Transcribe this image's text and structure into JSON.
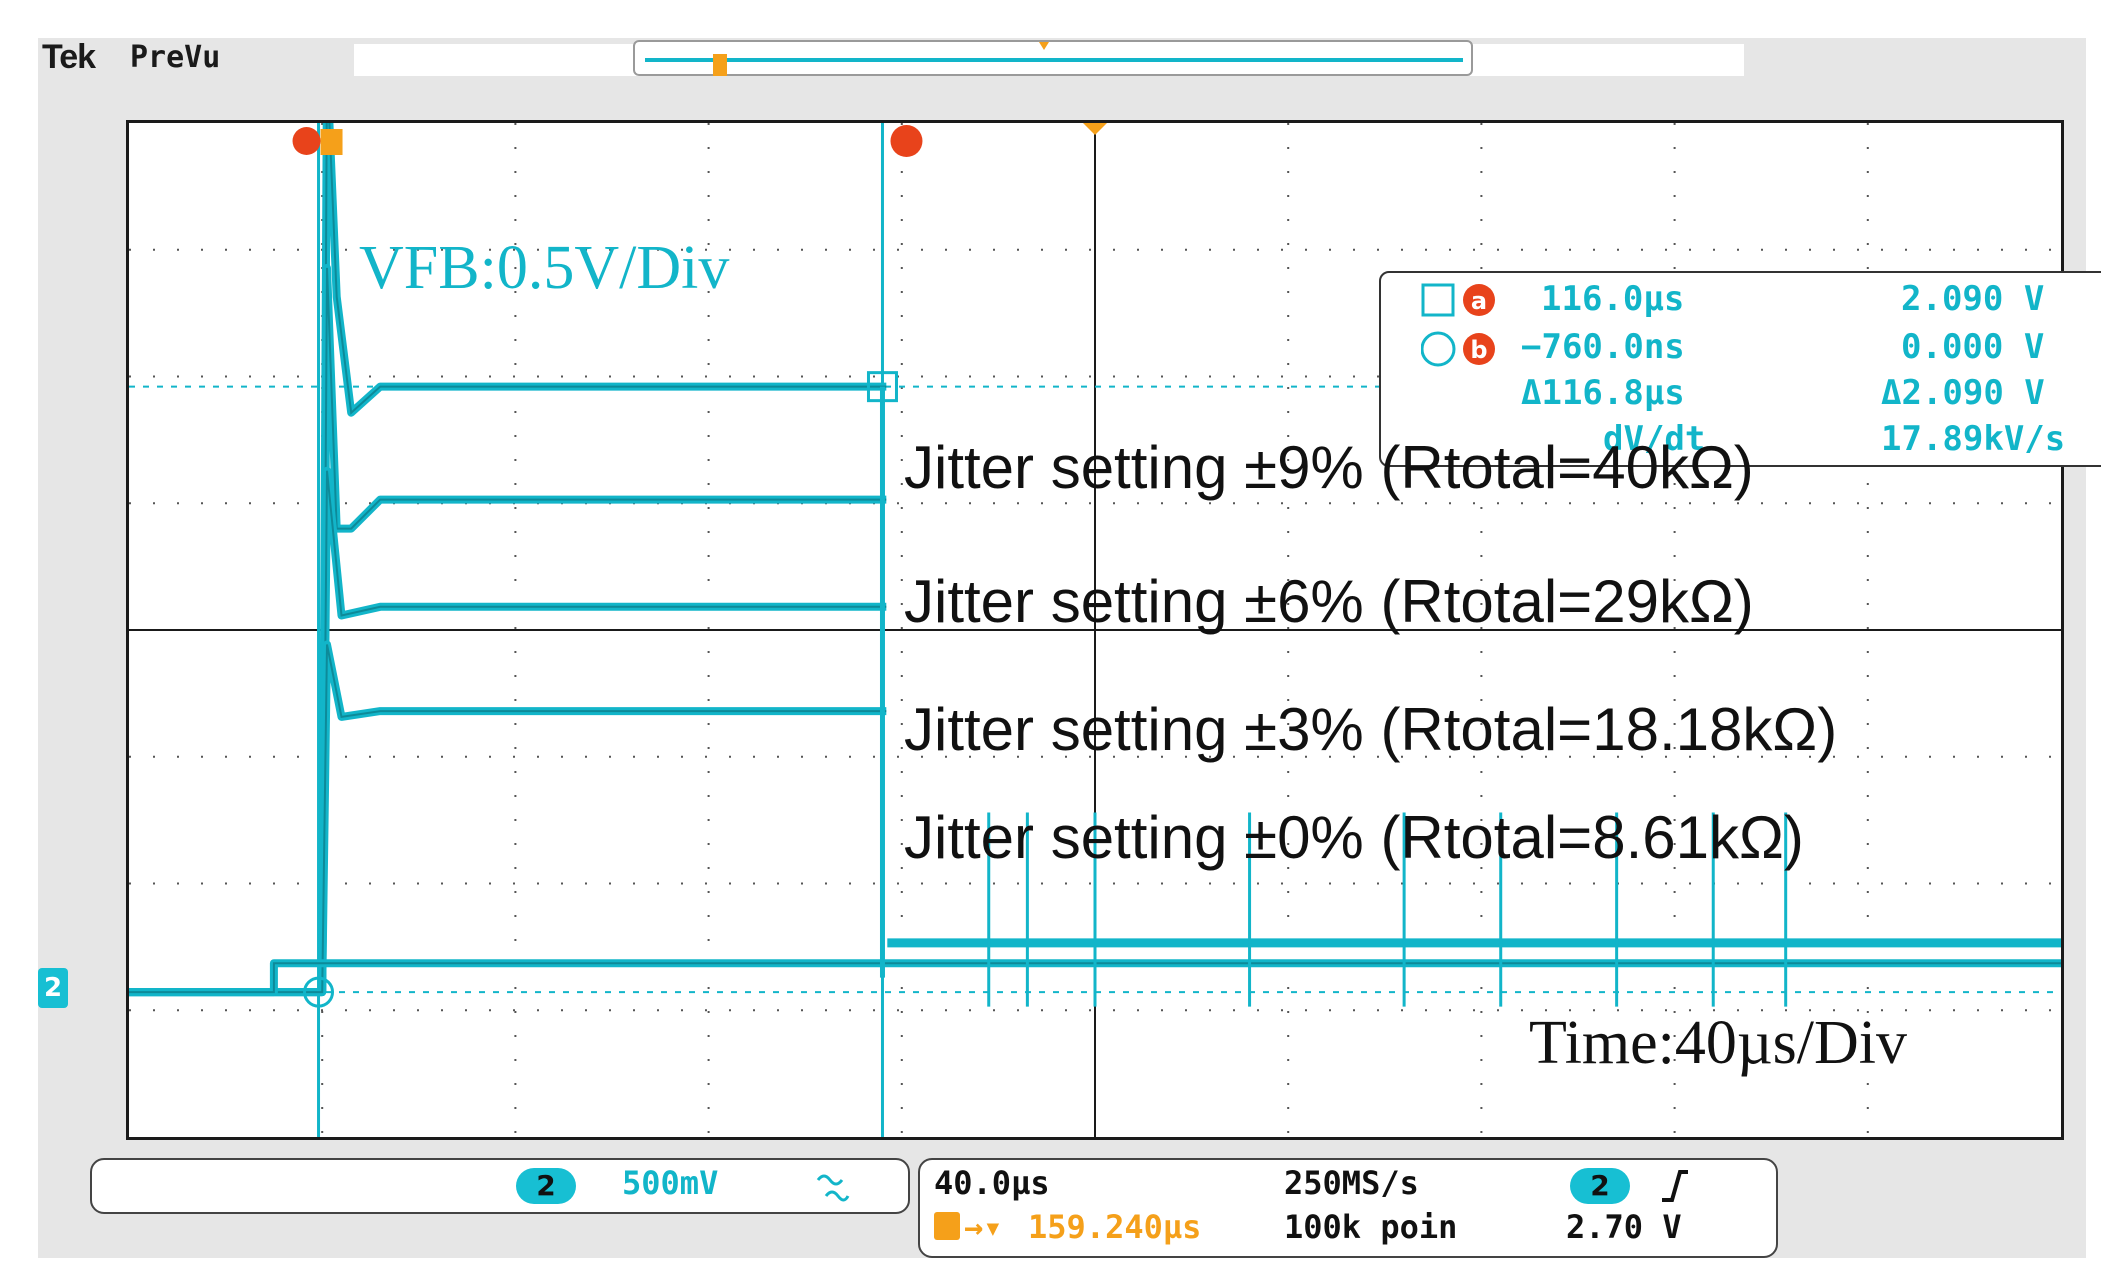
{
  "header": {
    "brand": "Tek",
    "mode": "PreVu"
  },
  "channel_marker": "2",
  "cursors": {
    "a_label": "a",
    "b_label": "b",
    "a_time": "116.0µs",
    "a_value": "2.090 V",
    "b_time": "−760.0ns",
    "b_value": "0.000 V",
    "delta_time": "Δ116.8µs",
    "delta_value": "Δ2.090 V",
    "dvdt_label": "dV/dt",
    "dvdt_value": "17.89kV/s"
  },
  "annotations": {
    "vfb_scale": "VFB:0.5V/Div",
    "time_scale": "Time:40µs/Div",
    "jitter_9": "Jitter setting  ±9% (Rtotal=40kΩ)",
    "jitter_6": "Jitter setting  ±6% (Rtotal=29kΩ)",
    "jitter_3": "Jitter setting  ±3% (Rtotal=18.18kΩ)",
    "jitter_0": "Jitter setting  ±0% (Rtotal=8.61kΩ)"
  },
  "vertical_panel": {
    "channel": "2",
    "scale": "500mV"
  },
  "horizontal_panel": {
    "timebase": "40.0µs",
    "trigger_position": "159.240µs",
    "sample_rate": "250MS/s",
    "record_length": "100k poin",
    "trigger_channel": "2",
    "trigger_level": "2.70 V"
  },
  "colors": {
    "trace": "#12b5c9",
    "cursor_badge": "#e8431b",
    "trigger": "#f5a01a",
    "grid": "#1a1a1a"
  },
  "chart_data": {
    "type": "line",
    "title": "",
    "xlabel": "Time:40µs/Div",
    "ylabel": "VFB:0.5V/Div",
    "x_unit": "µs",
    "y_unit": "V",
    "xlim": [
      -40,
      360
    ],
    "ylim": [
      -0.5,
      3.0
    ],
    "grid": true,
    "series": [
      {
        "name": "Jitter setting  ±9% (Rtotal=40kΩ)",
        "x": [
          -40,
          0,
          1,
          3,
          6,
          12,
          110,
          116.8,
          116.8
        ],
        "y": [
          0,
          0,
          3.2,
          2.4,
          2.0,
          2.09,
          2.09,
          2.09,
          2.09
        ]
      },
      {
        "name": "Jitter setting  ±6% (Rtotal=29kΩ)",
        "x": [
          -40,
          0,
          1,
          3,
          6,
          12,
          116.8
        ],
        "y": [
          0,
          0,
          2.5,
          1.6,
          1.6,
          1.7,
          1.7
        ]
      },
      {
        "name": "Jitter setting  ±3% (Rtotal=18.18kΩ)",
        "x": [
          -40,
          0,
          1,
          4,
          12,
          116.8
        ],
        "y": [
          0,
          0,
          1.8,
          1.3,
          1.33,
          1.33
        ]
      },
      {
        "name": "Jitter setting  ±0% (Rtotal=8.61kΩ)",
        "x": [
          -40,
          0,
          1,
          4,
          12,
          116.8
        ],
        "y": [
          0,
          0,
          1.2,
          0.95,
          0.97,
          0.97
        ]
      },
      {
        "name": "",
        "x": [
          -40,
          -10,
          -10,
          0,
          116.8,
          117,
          135,
          360
        ],
        "y": [
          0.0,
          0.0,
          0.1,
          0.1,
          0.1,
          0.1,
          0.1,
          0.1
        ]
      }
    ],
    "after_switch_level_v": 0.17,
    "spike_times_us": [
      138,
      146,
      160,
      192,
      224,
      244,
      268,
      288,
      303
    ],
    "cursor_a_us": 116.0,
    "cursor_b_us": -0.76,
    "trigger_us": 0,
    "ref_level_v": 0
  }
}
